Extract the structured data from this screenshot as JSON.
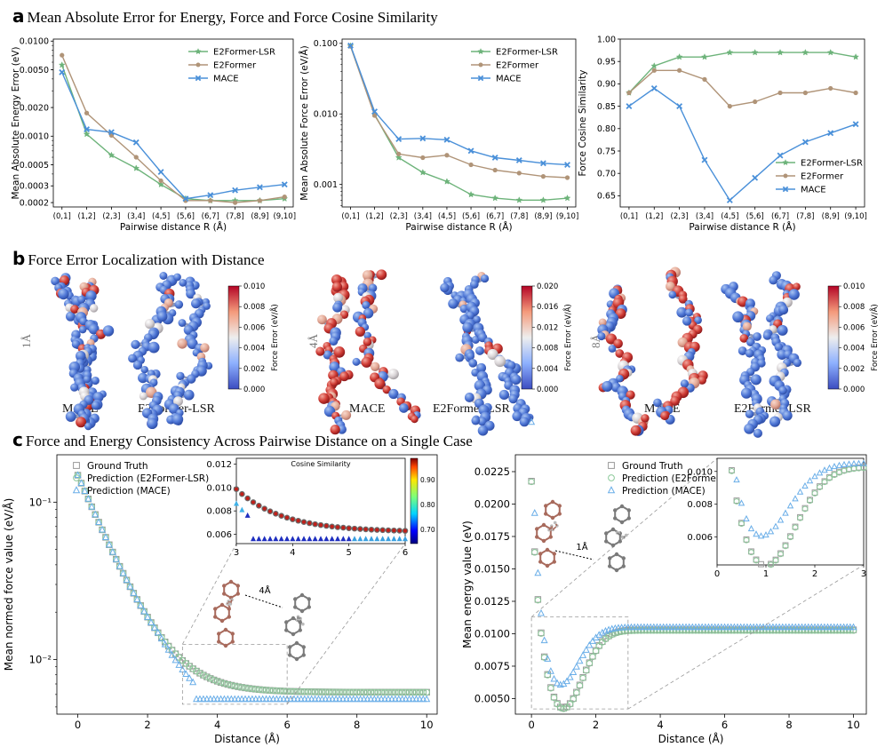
{
  "panel_a": {
    "letter": "a",
    "title": "Mean Absolute Error for Energy, Force and Force Cosine Similarity"
  },
  "panel_b": {
    "letter": "b",
    "title": "Force Error Localization with Distance",
    "groups": [
      {
        "distance": "1Å",
        "left": "MACE",
        "right": "E2Former-LSR",
        "cbar_label": "Force Error (eV/Å)",
        "ticks": [
          "0.010",
          "0.008",
          "0.006",
          "0.004",
          "0.002",
          "0.000"
        ]
      },
      {
        "distance": "4Å",
        "left": "MACE",
        "right": "E2Former-LSR",
        "cbar_label": "Force Error (eV/Å)",
        "ticks": [
          "0.020",
          "0.016",
          "0.012",
          "0.008",
          "0.004",
          "0.000"
        ]
      },
      {
        "distance": "8Å",
        "left": "MACE",
        "right": "E2Former-LSR",
        "cbar_label": "Force Error (eV/Å)",
        "ticks": [
          "0.010",
          "0.008",
          "0.006",
          "0.004",
          "0.002",
          "0.000"
        ]
      }
    ]
  },
  "panel_c": {
    "letter": "c",
    "title": "Force and Energy Consistency Across Pairwise Distance on a Single Case"
  },
  "colors": {
    "lsr": "#6db37a",
    "e2former": "#b09478",
    "mace": "#4a90d9",
    "gt": "#999999",
    "lsr_open": "#8cc99a",
    "mace_open": "#6aaee8"
  },
  "chart_data": [
    {
      "type": "line",
      "id": "a1",
      "categories": [
        "(0,1]",
        "(1,2]",
        "(2,3]",
        "(3,4]",
        "(4,5]",
        "(5,6]",
        "(6,7]",
        "(7,8]",
        "(8,9]",
        "(9,10]"
      ],
      "series": [
        {
          "name": "E2Former-LSR",
          "values": [
            0.0056,
            0.00105,
            0.00063,
            0.00046,
            0.00031,
            0.00022,
            0.00021,
            0.00021,
            0.00021,
            0.00022
          ]
        },
        {
          "name": "E2Former",
          "values": [
            0.0071,
            0.00175,
            0.00102,
            0.0006,
            0.00034,
            0.00021,
            0.00021,
            0.0002,
            0.00021,
            0.00023
          ]
        },
        {
          "name": "MACE",
          "values": [
            0.0047,
            0.00118,
            0.0011,
            0.00086,
            0.00042,
            0.00022,
            0.00024,
            0.00027,
            0.00029,
            0.00031
          ]
        }
      ],
      "xlabel": "Pairwise distance R (Å)",
      "ylabel": "Mean Absolute Energy Error (eV)",
      "yscale": "log",
      "ylim": [
        0.00018,
        0.0105
      ],
      "yticks": [
        0.0002,
        0.0003,
        0.0005,
        0.001,
        0.002,
        0.005,
        0.01
      ],
      "yticklabels": [
        "0.0002",
        "0.0003",
        "0.0005",
        "0.0010",
        "0.0020",
        "0.0050",
        "0.0100"
      ],
      "legend": "top-right"
    },
    {
      "type": "line",
      "id": "a2",
      "categories": [
        "(0,1]",
        "(1,2]",
        "(2,3]",
        "(3,4]",
        "(4,5]",
        "(5,6]",
        "(6,7]",
        "(7,8]",
        "(8,9]",
        "(9,10]"
      ],
      "series": [
        {
          "name": "E2Former-LSR",
          "values": [
            0.092,
            0.0098,
            0.0024,
            0.00148,
            0.0011,
            0.00072,
            0.00064,
            0.0006,
            0.0006,
            0.00064
          ]
        },
        {
          "name": "E2Former",
          "values": [
            0.091,
            0.0095,
            0.0027,
            0.0024,
            0.0026,
            0.0019,
            0.0016,
            0.00145,
            0.0013,
            0.00125
          ]
        },
        {
          "name": "MACE",
          "values": [
            0.093,
            0.0108,
            0.0044,
            0.0045,
            0.0043,
            0.003,
            0.0024,
            0.0022,
            0.002,
            0.0019
          ]
        }
      ],
      "xlabel": "Pairwise distance R (Å)",
      "ylabel": "Mean Absolute Force Error (eV/Å)",
      "yscale": "log",
      "ylim": [
        0.00048,
        0.115
      ],
      "yticks": [
        0.001,
        0.01,
        0.1
      ],
      "yticklabels": [
        "0.001",
        "0.010",
        "0.100"
      ],
      "legend": "top-right"
    },
    {
      "type": "line",
      "id": "a3",
      "categories": [
        "(0,1]",
        "(1,2]",
        "(2,3]",
        "(3,4]",
        "(4,5]",
        "(5,6]",
        "(6,7]",
        "(7,8]",
        "(8,9]",
        "(9,10]"
      ],
      "series": [
        {
          "name": "E2Former-LSR",
          "values": [
            0.88,
            0.94,
            0.96,
            0.96,
            0.97,
            0.97,
            0.97,
            0.97,
            0.97,
            0.96
          ]
        },
        {
          "name": "E2Former",
          "values": [
            0.88,
            0.93,
            0.93,
            0.91,
            0.85,
            0.86,
            0.88,
            0.88,
            0.89,
            0.88
          ]
        },
        {
          "name": "MACE",
          "values": [
            0.85,
            0.89,
            0.85,
            0.73,
            0.64,
            0.69,
            0.74,
            0.77,
            0.79,
            0.81
          ]
        }
      ],
      "xlabel": "Pairwise distance R (Å)",
      "ylabel": "Force Cosine Similarity",
      "ylim": [
        0.625,
        1.0
      ],
      "yticks": [
        0.65,
        0.7,
        0.75,
        0.8,
        0.85,
        0.9,
        0.95,
        1.0
      ],
      "yticklabels": [
        "0.65",
        "0.70",
        "0.75",
        "0.80",
        "0.85",
        "0.90",
        "0.95",
        "1.00"
      ],
      "legend": "bottom-right"
    },
    {
      "type": "scatter",
      "id": "c1",
      "x_range": [
        0,
        10
      ],
      "x_step": 0.1,
      "series": [
        {
          "name": "Ground Truth",
          "marker": "square",
          "model": "gt",
          "decay": {
            "base": 0.0062,
            "amp": 0.2,
            "scale": 0.82
          }
        },
        {
          "name": "Prediction (E2Former-LSR)",
          "marker": "circle",
          "model": "gt",
          "decay": {
            "base": 0.0062,
            "amp": 0.2,
            "scale": 0.82
          }
        },
        {
          "name": "Prediction (MACE)",
          "marker": "triangle",
          "model": "mace",
          "decay": {
            "base": 0.0062,
            "amp": 0.2,
            "scale": 0.82
          },
          "floor_after": 3.3,
          "floor": 0.0056
        }
      ],
      "xlabel": "Distance (Å)",
      "ylabel": "Mean normed force value (eV/Å)",
      "yscale": "log",
      "ylim": [
        0.0045,
        0.2
      ],
      "xlim": [
        -0.6,
        10.3
      ],
      "xticks": [
        0,
        2,
        4,
        6,
        8,
        10
      ],
      "yticks": [
        0.01,
        0.1
      ],
      "yticklabels": [
        "10⁻²",
        "10⁻¹"
      ],
      "legend": "top-left",
      "inset": {
        "title": "Cosine Similarity",
        "xlim": [
          3,
          6
        ],
        "ylim": [
          0.0052,
          0.0125
        ],
        "xticks": [
          3,
          4,
          5,
          6
        ],
        "yticks": [
          0.006,
          0.008,
          0.01,
          0.012
        ],
        "yticklabels": [
          "0.006",
          "0.008",
          "0.010",
          "0.012"
        ],
        "colorbar_ticks": [
          "0.90",
          "0.80",
          "0.70"
        ]
      },
      "annotation": "4Å"
    },
    {
      "type": "scatter",
      "id": "c2",
      "x_range": [
        0,
        10
      ],
      "x_step": 0.1,
      "series": [
        {
          "name": "Ground Truth",
          "marker": "square",
          "model": "gt"
        },
        {
          "name": "Prediction (E2Former-LSR)",
          "marker": "circle",
          "model": "lsr"
        },
        {
          "name": "Prediction (MACE)",
          "marker": "triangle",
          "model": "mace"
        }
      ],
      "xlabel": "Distance (Å)",
      "ylabel": "Mean energy value (eV)",
      "ylim": [
        0.0038,
        0.0238
      ],
      "xlim": [
        -0.5,
        10.4
      ],
      "xticks": [
        0,
        2,
        4,
        6,
        8,
        10
      ],
      "yticks": [
        0.005,
        0.0075,
        0.01,
        0.0125,
        0.015,
        0.0175,
        0.02,
        0.0225
      ],
      "yticklabels": [
        "0.0050",
        "0.0075",
        "0.0100",
        "0.0125",
        "0.0150",
        "0.0175",
        "0.0200",
        "0.0225"
      ],
      "legend": "top-left",
      "inset": {
        "xlim": [
          0,
          3
        ],
        "ylim": [
          0.0043,
          0.0108
        ],
        "xticks": [
          0,
          1,
          2,
          3
        ],
        "yticks": [
          0.006,
          0.008,
          0.01
        ],
        "yticklabels": [
          "0.006",
          "0.008",
          "0.010"
        ]
      },
      "annotation": "1Å"
    }
  ]
}
